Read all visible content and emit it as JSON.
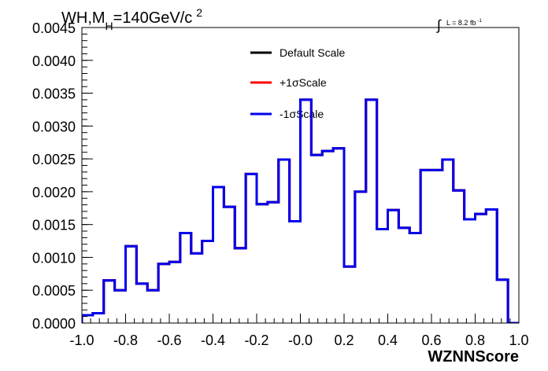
{
  "chart_data": {
    "type": "line",
    "style": "step-histogram",
    "title": {
      "prefix": "WH,M",
      "sub": "H",
      "rest": "=140GeV/c",
      "sup": "2"
    },
    "lumi_label": "L = 8.2 fb",
    "lumi_sup": "-1",
    "xlabel": "WZNNScore",
    "ylabel": "",
    "xlim": [
      -1.0,
      1.0
    ],
    "ylim": [
      0.0,
      0.0045
    ],
    "x_ticks": [
      "-1.0",
      "-0.8",
      "-0.6",
      "-0.4",
      "-0.2",
      "-0.0",
      "0.2",
      "0.4",
      "0.6",
      "0.8",
      "1.0"
    ],
    "y_ticks": [
      "0.0000",
      "0.0005",
      "0.0010",
      "0.0015",
      "0.0020",
      "0.0025",
      "0.0030",
      "0.0035",
      "0.0040",
      "0.0045"
    ],
    "grid": false,
    "legend_position": "top-center",
    "bin_edges": [
      -1.0,
      -0.95,
      -0.9,
      -0.85,
      -0.8,
      -0.75,
      -0.7,
      -0.65,
      -0.6,
      -0.55,
      -0.5,
      -0.45,
      -0.4,
      -0.35,
      -0.3,
      -0.25,
      -0.2,
      -0.15,
      -0.1,
      -0.05,
      0.0,
      0.05,
      0.1,
      0.15,
      0.2,
      0.25,
      0.3,
      0.35,
      0.4,
      0.45,
      0.5,
      0.55,
      0.6,
      0.65,
      0.7,
      0.75,
      0.8,
      0.85,
      0.9,
      0.95,
      1.0
    ],
    "series": [
      {
        "name": "Default Scale",
        "color": "#000000",
        "values": [
          0.00012,
          0.00015,
          0.00065,
          0.0005,
          0.00117,
          0.0006,
          0.0005,
          0.0009,
          0.00093,
          0.00137,
          0.00106,
          0.00125,
          0.00207,
          0.00177,
          0.00114,
          0.00227,
          0.00181,
          0.00184,
          0.00249,
          0.00155,
          0.0034,
          0.00256,
          0.00262,
          0.00266,
          0.00086,
          0.002,
          0.0034,
          0.00143,
          0.00172,
          0.00145,
          0.00137,
          0.00233,
          0.00233,
          0.00249,
          0.00202,
          0.00158,
          0.00166,
          0.00173,
          0.00066,
          0.0
        ]
      },
      {
        "name": "+1σScale",
        "color": "#ff0000",
        "values": [
          0.00012,
          0.00015,
          0.00065,
          0.0005,
          0.00117,
          0.0006,
          0.0005,
          0.0009,
          0.00093,
          0.00137,
          0.00106,
          0.00125,
          0.00207,
          0.00177,
          0.00114,
          0.00227,
          0.00181,
          0.00184,
          0.00249,
          0.00155,
          0.0034,
          0.00256,
          0.00262,
          0.00266,
          0.00086,
          0.002,
          0.0034,
          0.00143,
          0.00172,
          0.00145,
          0.00137,
          0.00233,
          0.00233,
          0.00249,
          0.00202,
          0.00158,
          0.00166,
          0.00173,
          0.00066,
          0.0
        ]
      },
      {
        "name": "-1σScale",
        "color": "#0000ee",
        "values": [
          0.00012,
          0.00015,
          0.00065,
          0.0005,
          0.00117,
          0.0006,
          0.0005,
          0.0009,
          0.00093,
          0.00137,
          0.00106,
          0.00125,
          0.00207,
          0.00177,
          0.00114,
          0.00227,
          0.00181,
          0.00184,
          0.00249,
          0.00155,
          0.0034,
          0.00256,
          0.00262,
          0.00266,
          0.00086,
          0.002,
          0.0034,
          0.00143,
          0.00172,
          0.00145,
          0.00137,
          0.00233,
          0.00233,
          0.00249,
          0.00202,
          0.00158,
          0.00166,
          0.00173,
          0.00066,
          0.0
        ]
      }
    ]
  }
}
